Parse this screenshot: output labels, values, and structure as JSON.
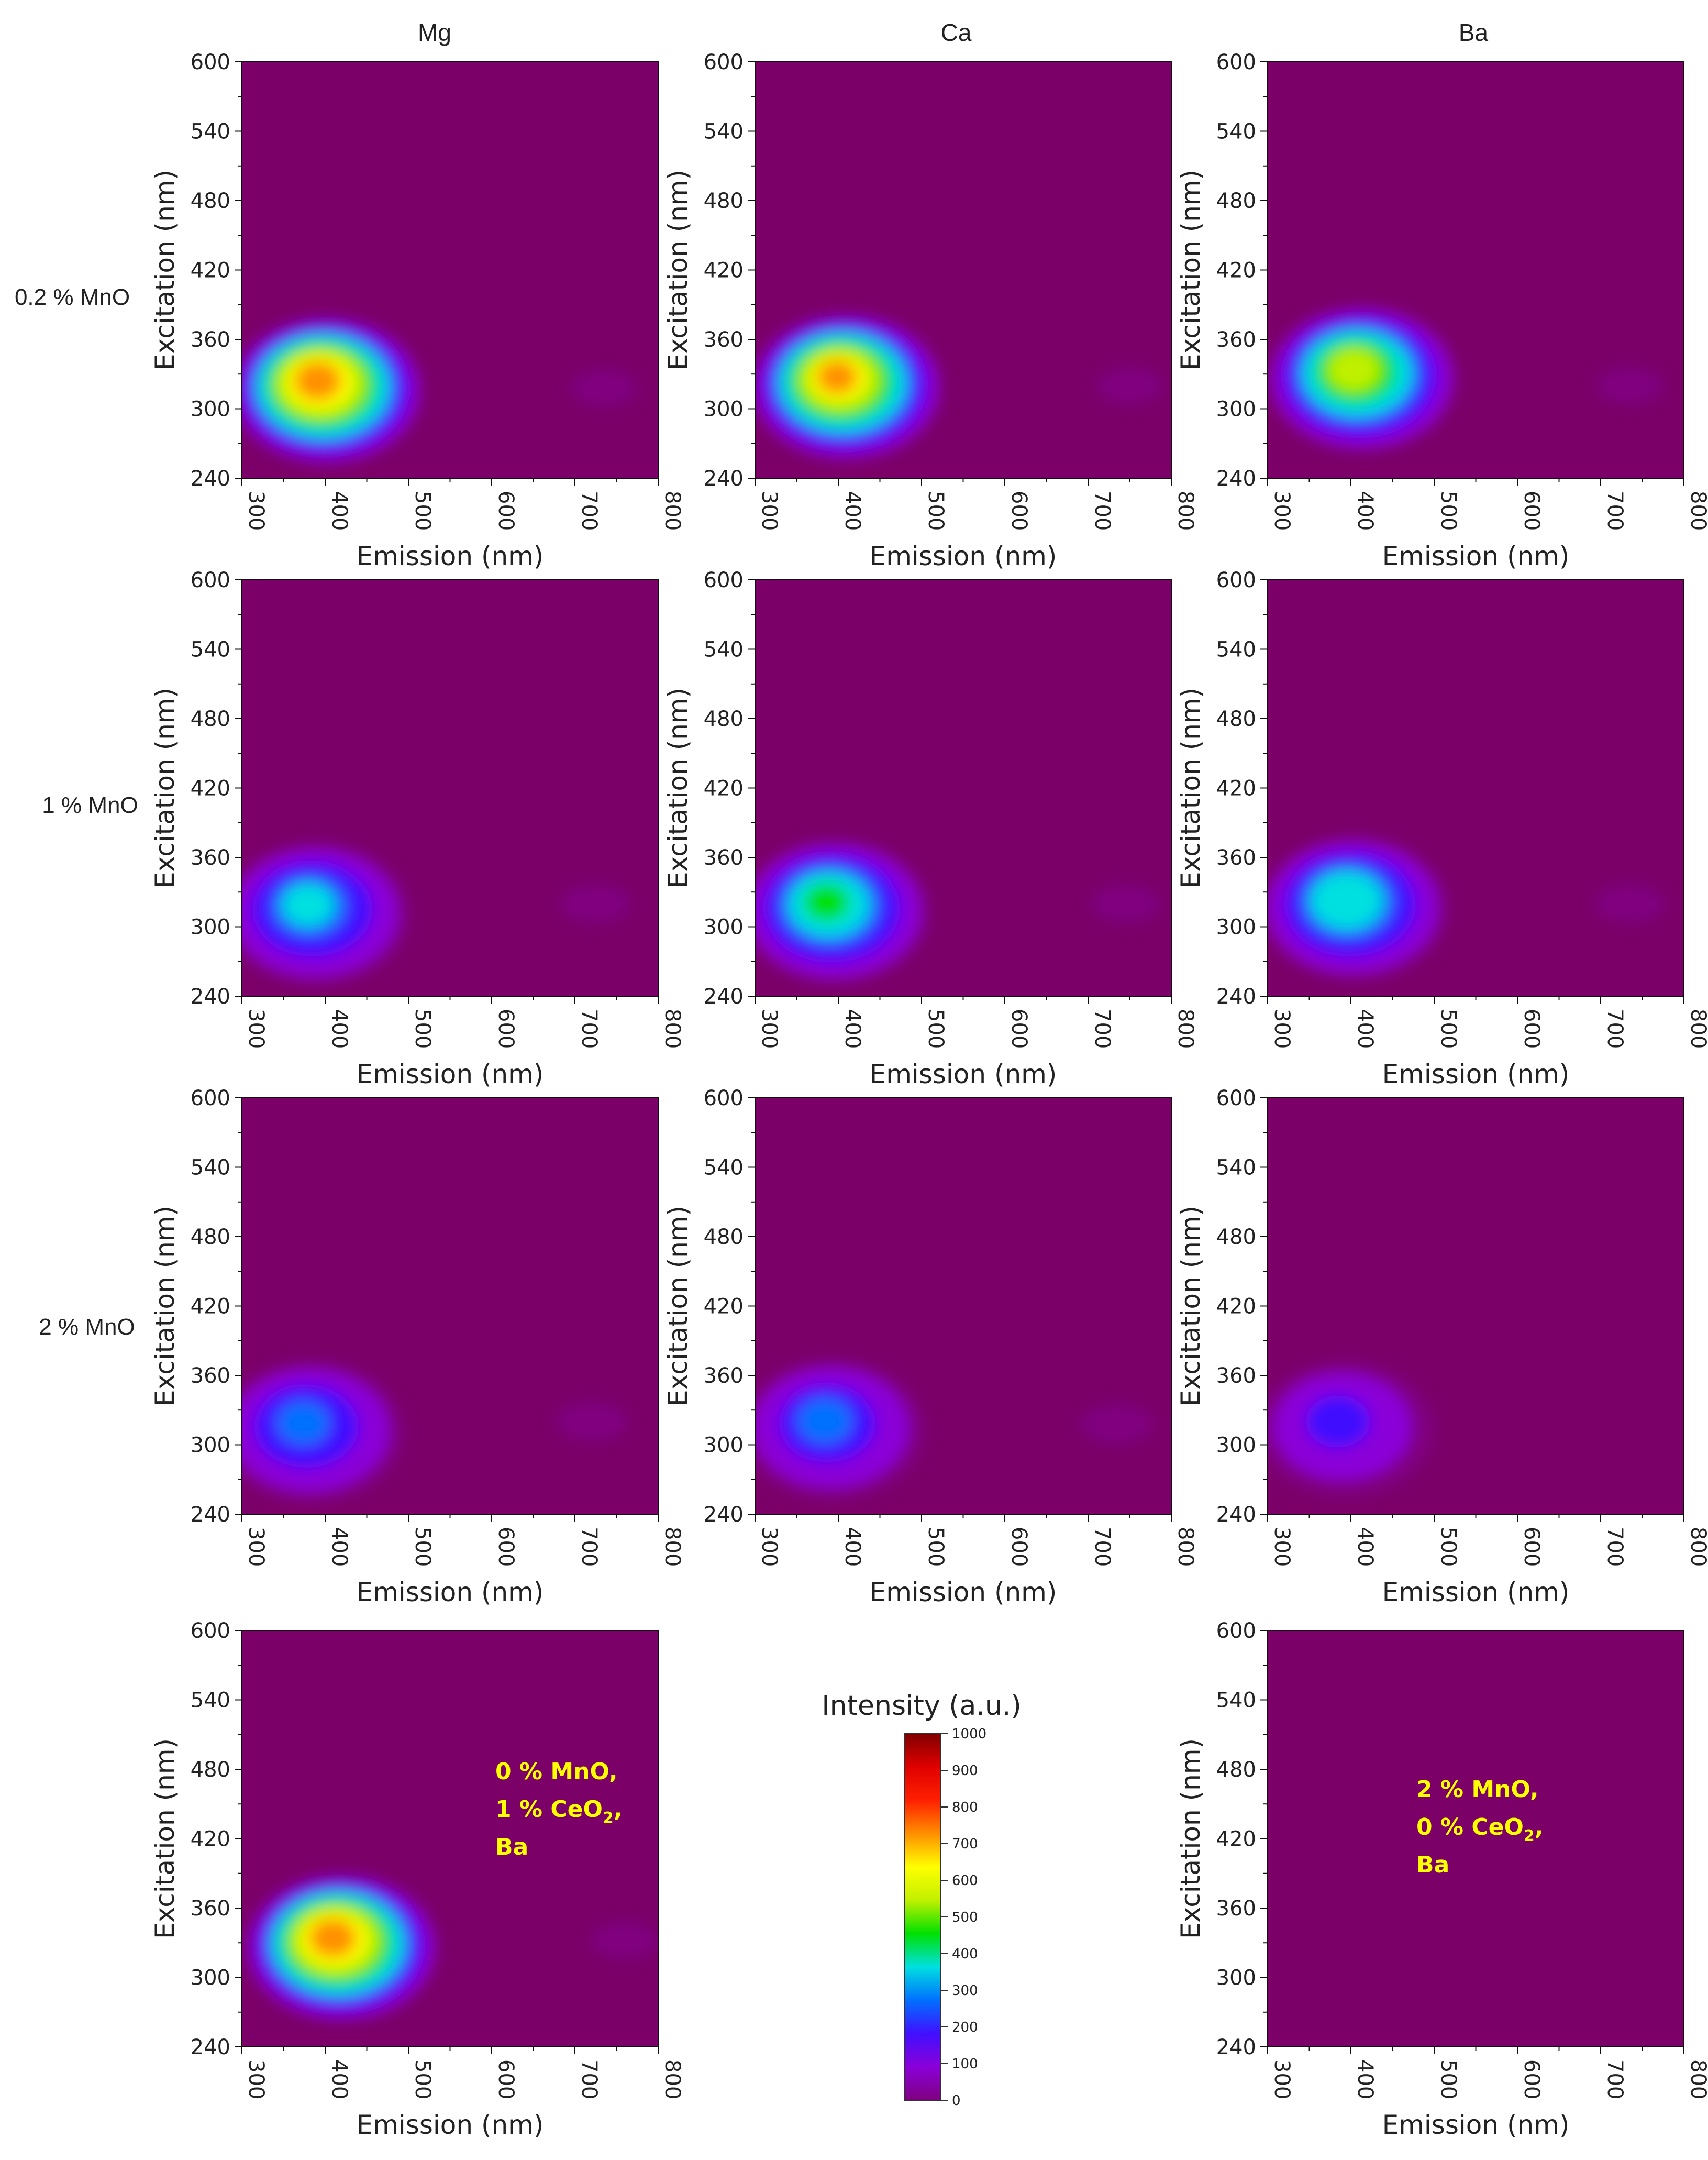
{
  "figure": {
    "column_titles": [
      "Mg",
      "Ca",
      "Ba"
    ],
    "row_labels": [
      "0.2 % MnO",
      "1 % MnO",
      "2 % MnO"
    ],
    "xlabel": "Emission (nm)",
    "ylabel": "Excitation (nm)",
    "x_ticks": [
      "300",
      "400",
      "500",
      "600",
      "700",
      "800"
    ],
    "y_ticks": [
      "240",
      "300",
      "360",
      "420",
      "480",
      "540",
      "600"
    ],
    "xlim": [
      300,
      800
    ],
    "ylim": [
      240,
      600
    ],
    "background_color": "#7b0068"
  },
  "colorbar": {
    "title": "Intensity (a.u.)",
    "ticks": [
      "0",
      "100",
      "200",
      "300",
      "400",
      "500",
      "600",
      "700",
      "800",
      "900",
      "1000"
    ],
    "range": [
      0,
      1000
    ],
    "colors": [
      "#800080",
      "#8a00d8",
      "#4010ff",
      "#0070ff",
      "#00e0e0",
      "#00e000",
      "#c0f000",
      "#ffff00",
      "#ff9000",
      "#ff2000",
      "#e00000",
      "#800000"
    ]
  },
  "panels": [
    {
      "id": "mg-0.2",
      "annotation": []
    },
    {
      "id": "ca-0.2",
      "annotation": []
    },
    {
      "id": "ba-0.2",
      "annotation": []
    },
    {
      "id": "mg-1",
      "annotation": []
    },
    {
      "id": "ca-1",
      "annotation": []
    },
    {
      "id": "ba-1",
      "annotation": []
    },
    {
      "id": "mg-2",
      "annotation": []
    },
    {
      "id": "ca-2",
      "annotation": []
    },
    {
      "id": "ba-2",
      "annotation": []
    },
    {
      "id": "ref-ce",
      "annotation": [
        "0 % MnO,",
        "1 % CeO",
        "2",
        ",",
        "Ba"
      ]
    },
    {
      "id": "ref-mn",
      "annotation": [
        "2 % MnO,",
        "0 % CeO",
        "2",
        ",",
        "Ba"
      ]
    }
  ],
  "chart_data": [
    {
      "type": "heatmap",
      "panel": "mg-0.2",
      "title": "Mg, 0.2 % MnO",
      "xlabel": "Emission (nm)",
      "ylabel": "Excitation (nm)",
      "xlim": [
        300,
        800
      ],
      "ylim": [
        240,
        600
      ],
      "peaks": [
        {
          "emission": 390,
          "excitation": 325,
          "intensity": 760
        },
        {
          "emission": 735,
          "excitation": 318,
          "intensity": 25
        }
      ]
    },
    {
      "type": "heatmap",
      "panel": "ca-0.2",
      "title": "Ca, 0.2 % MnO",
      "xlabel": "Emission (nm)",
      "ylabel": "Excitation (nm)",
      "xlim": [
        300,
        800
      ],
      "ylim": [
        240,
        600
      ],
      "peaks": [
        {
          "emission": 398,
          "excitation": 328,
          "intensity": 700
        },
        {
          "emission": 750,
          "excitation": 320,
          "intensity": 25
        }
      ]
    },
    {
      "type": "heatmap",
      "panel": "ba-0.2",
      "title": "Ba, 0.2 % MnO",
      "xlabel": "Emission (nm)",
      "ylabel": "Excitation (nm)",
      "xlim": [
        300,
        800
      ],
      "ylim": [
        240,
        600
      ],
      "peaks": [
        {
          "emission": 402,
          "excitation": 335,
          "intensity": 560
        },
        {
          "emission": 735,
          "excitation": 320,
          "intensity": 25
        }
      ]
    },
    {
      "type": "heatmap",
      "panel": "mg-1",
      "title": "Mg, 1 % MnO",
      "xlabel": "Emission (nm)",
      "ylabel": "Excitation (nm)",
      "xlim": [
        300,
        800
      ],
      "ylim": [
        240,
        600
      ],
      "peaks": [
        {
          "emission": 378,
          "excitation": 320,
          "intensity": 330
        },
        {
          "emission": 725,
          "excitation": 320,
          "intensity": 20
        }
      ]
    },
    {
      "type": "heatmap",
      "panel": "ca-1",
      "title": "Ca, 1 % MnO",
      "xlabel": "Emission (nm)",
      "ylabel": "Excitation (nm)",
      "xlim": [
        300,
        800
      ],
      "ylim": [
        240,
        600
      ],
      "peaks": [
        {
          "emission": 385,
          "excitation": 322,
          "intensity": 420
        },
        {
          "emission": 745,
          "excitation": 320,
          "intensity": 22
        }
      ]
    },
    {
      "type": "heatmap",
      "panel": "ba-1",
      "title": "Ba, 1 % MnO",
      "xlabel": "Emission (nm)",
      "ylabel": "Excitation (nm)",
      "xlim": [
        300,
        800
      ],
      "ylim": [
        240,
        600
      ],
      "peaks": [
        {
          "emission": 392,
          "excitation": 325,
          "intensity": 390
        },
        {
          "emission": 735,
          "excitation": 320,
          "intensity": 20
        }
      ]
    },
    {
      "type": "heatmap",
      "panel": "mg-2",
      "title": "Mg, 2 % MnO",
      "xlabel": "Emission (nm)",
      "ylabel": "Excitation (nm)",
      "xlim": [
        300,
        800
      ],
      "ylim": [
        240,
        600
      ],
      "peaks": [
        {
          "emission": 372,
          "excitation": 320,
          "intensity": 270
        },
        {
          "emission": 720,
          "excitation": 320,
          "intensity": 18
        }
      ]
    },
    {
      "type": "heatmap",
      "panel": "ca-2",
      "title": "Ca, 2 % MnO",
      "xlabel": "Emission (nm)",
      "ylabel": "Excitation (nm)",
      "xlim": [
        300,
        800
      ],
      "ylim": [
        240,
        600
      ],
      "peaks": [
        {
          "emission": 382,
          "excitation": 322,
          "intensity": 245
        },
        {
          "emission": 735,
          "excitation": 318,
          "intensity": 16
        }
      ]
    },
    {
      "type": "heatmap",
      "panel": "ba-2",
      "title": "Ba, 2 % MnO",
      "xlabel": "Emission (nm)",
      "ylabel": "Excitation (nm)",
      "xlim": [
        300,
        800
      ],
      "ylim": [
        240,
        600
      ],
      "peaks": [
        {
          "emission": 382,
          "excitation": 322,
          "intensity": 165
        }
      ]
    },
    {
      "type": "heatmap",
      "panel": "ref-ce",
      "title": "0 % MnO, 1 % CeO2, Ba",
      "xlabel": "Emission (nm)",
      "ylabel": "Excitation (nm)",
      "xlim": [
        300,
        800
      ],
      "ylim": [
        240,
        600
      ],
      "peaks": [
        {
          "emission": 408,
          "excitation": 335,
          "intensity": 760
        },
        {
          "emission": 760,
          "excitation": 332,
          "intensity": 28
        }
      ]
    },
    {
      "type": "heatmap",
      "panel": "ref-mn",
      "title": "2 % MnO, 0 % CeO2, Ba",
      "xlabel": "Emission (nm)",
      "ylabel": "Excitation (nm)",
      "xlim": [
        300,
        800
      ],
      "ylim": [
        240,
        600
      ],
      "peaks": []
    }
  ]
}
